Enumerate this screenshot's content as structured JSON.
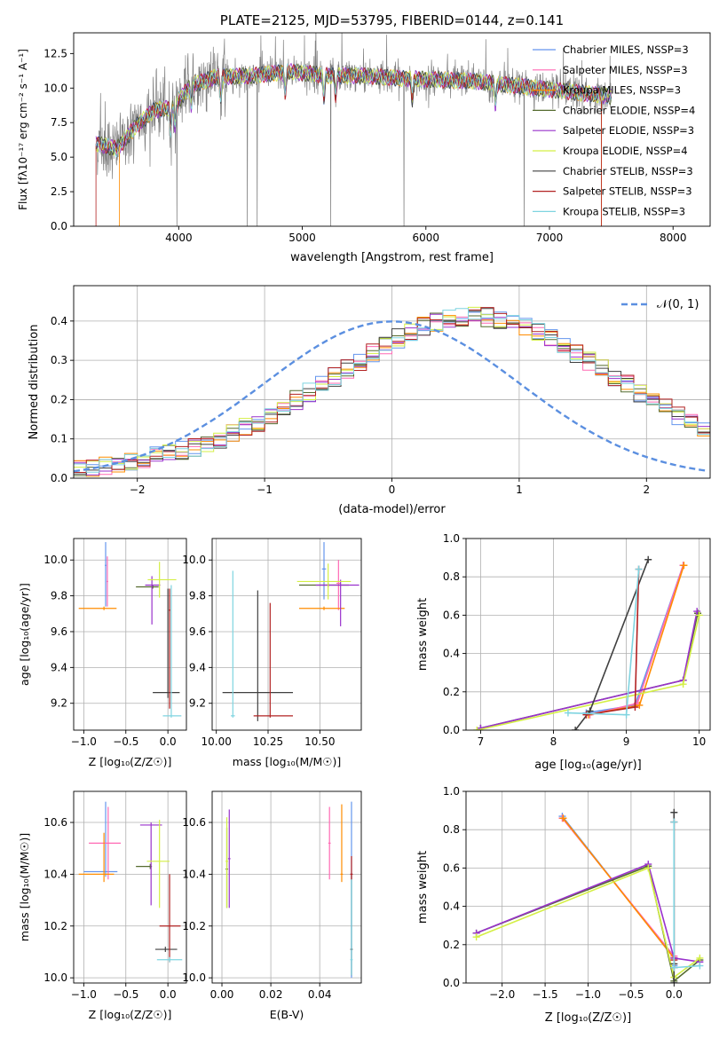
{
  "chart_data": [
    {
      "id": "spectrum",
      "type": "line",
      "title": "PLATE=2125, MJD=53795, FIBERID=0144, z=0.141",
      "xlabel": "wavelength [Angstrom, rest frame]",
      "ylabel": "Flux [fλ10⁻¹⁷ erg cm⁻² s⁻¹ A⁻¹]",
      "xlim": [
        3150,
        8300
      ],
      "ylim": [
        0,
        14
      ],
      "xticks": [
        4000,
        5000,
        6000,
        7000,
        8000
      ],
      "yticks": [
        0.0,
        2.5,
        5.0,
        7.5,
        10.0,
        12.5
      ],
      "grid": false,
      "legend": "top-right",
      "data_series": {
        "name": "data",
        "color": "#808080"
      },
      "series": [
        {
          "name": "Chabrier MILES, NSSP=3",
          "color": "#6495ed"
        },
        {
          "name": "Salpeter MILES, NSSP=3",
          "color": "#ff69b4"
        },
        {
          "name": "Kroupa MILES, NSSP=3",
          "color": "#ff8c00"
        },
        {
          "name": "Chabrier ELODIE, NSSP=4",
          "color": "#556b2f"
        },
        {
          "name": "Salpeter ELODIE, NSSP=3",
          "color": "#9932cc"
        },
        {
          "name": "Kroupa ELODIE, NSSP=4",
          "color": "#d4ef44"
        },
        {
          "name": "Chabrier STELIB, NSSP=3",
          "color": "#404040"
        },
        {
          "name": "Salpeter STELIB, NSSP=3",
          "color": "#b22222"
        },
        {
          "name": "Kroupa STELIB, NSSP=3",
          "color": "#7fd4e0"
        }
      ],
      "anchors": {
        "x": [
          3330,
          3500,
          3650,
          3800,
          3950,
          4100,
          4300,
          4600,
          4900,
          5200,
          5500,
          5800,
          6100,
          6400,
          6700,
          7000,
          7300,
          7500
        ],
        "y": [
          6.0,
          5.6,
          7.2,
          8.4,
          8.6,
          10.2,
          10.8,
          10.9,
          11.2,
          10.9,
          10.9,
          10.7,
          10.6,
          10.5,
          10.2,
          9.9,
          9.6,
          9.4
        ]
      }
    },
    {
      "id": "residuals",
      "type": "histogram",
      "xlabel": "(data-model)/error",
      "ylabel": "Normed distribution",
      "xlim": [
        -2.5,
        2.5
      ],
      "ylim": [
        0,
        0.49
      ],
      "xticks": [
        -2,
        -1,
        0,
        1,
        2
      ],
      "yticks": [
        0.0,
        0.1,
        0.2,
        0.3,
        0.4
      ],
      "grid": true,
      "legend": "top-right",
      "reference": {
        "name": "𝒩(0, 1)",
        "color": "#5b8fe0"
      },
      "bin_edges_start": -2.5,
      "bin_width": 0.1,
      "base_heights": [
        0.022,
        0.026,
        0.03,
        0.036,
        0.045,
        0.052,
        0.058,
        0.065,
        0.072,
        0.08,
        0.09,
        0.099,
        0.112,
        0.128,
        0.142,
        0.16,
        0.178,
        0.198,
        0.218,
        0.238,
        0.258,
        0.278,
        0.298,
        0.318,
        0.338,
        0.356,
        0.372,
        0.386,
        0.397,
        0.405,
        0.41,
        0.412,
        0.41,
        0.405,
        0.397,
        0.386,
        0.372,
        0.356,
        0.338,
        0.318,
        0.298,
        0.278,
        0.258,
        0.238,
        0.218,
        0.198,
        0.178,
        0.16,
        0.142,
        0.128,
        0.112
      ]
    },
    {
      "id": "age-vs-Z",
      "type": "errorbar",
      "xlabel": "Z [log₁₀(Z/Z☉)]",
      "ylabel": "age  [log₁₀(age/yr)]",
      "xlim": [
        -1.12,
        0.22
      ],
      "ylim": [
        9.05,
        10.12
      ],
      "xticks": [
        -1.0,
        -0.5,
        0.0
      ],
      "xticklabels": [
        "−1.0",
        "−0.5",
        "0.0"
      ],
      "yticks": [
        9.2,
        9.4,
        9.6,
        9.8,
        10.0
      ],
      "grid": true,
      "points": [
        {
          "x": -0.74,
          "y": 9.97,
          "xerr": [
            0.01,
            0.01
          ],
          "yerr": [
            0.23,
            0.13
          ],
          "color": "#6495ed"
        },
        {
          "x": -0.72,
          "y": 9.88,
          "xerr": [
            0.01,
            0.01
          ],
          "yerr": [
            0.14,
            0.14
          ],
          "color": "#ff69b4"
        },
        {
          "x": -0.76,
          "y": 9.73,
          "xerr": [
            0.3,
            0.15
          ],
          "yerr": [
            0.01,
            0.01
          ],
          "color": "#ff8c00"
        },
        {
          "x": -0.18,
          "y": 9.85,
          "xerr": [
            0.2,
            0.07
          ],
          "yerr": [
            0.01,
            0.01
          ],
          "color": "#556b2f"
        },
        {
          "x": -0.19,
          "y": 9.86,
          "xerr": [
            0.08,
            0.1
          ],
          "yerr": [
            0.22,
            0.05
          ],
          "color": "#9932cc"
        },
        {
          "x": -0.1,
          "y": 9.89,
          "xerr": [
            0.14,
            0.2
          ],
          "yerr": [
            0.1,
            0.1
          ],
          "color": "#d4ef44"
        },
        {
          "x": 0.0,
          "y": 9.26,
          "xerr": [
            0.18,
            0.14
          ],
          "yerr": [
            0.03,
            0.58
          ],
          "color": "#404040"
        },
        {
          "x": 0.02,
          "y": 9.72,
          "xerr": [
            0.01,
            0.01
          ],
          "yerr": [
            0.55,
            0.12
          ],
          "color": "#b22222"
        },
        {
          "x": 0.04,
          "y": 9.13,
          "xerr": [
            0.1,
            0.12
          ],
          "yerr": [
            0.01,
            0.73
          ],
          "color": "#7fd4e0"
        }
      ]
    },
    {
      "id": "age-vs-mass",
      "type": "errorbar",
      "xlabel": "mass [log₁₀(M/M☉)]",
      "ylabel": "",
      "xlim": [
        9.98,
        10.7
      ],
      "ylim": [
        9.05,
        10.12
      ],
      "xticks": [
        10.0,
        10.25,
        10.5
      ],
      "xticklabels": [
        "10.00",
        "10.25",
        "10.50"
      ],
      "yticks": [
        9.2,
        9.4,
        9.6,
        9.8,
        10.0
      ],
      "grid": true,
      "points": [
        {
          "x": 10.52,
          "y": 9.95,
          "xerr": [
            0.01,
            0.01
          ],
          "yerr": [
            0.17,
            0.15
          ],
          "color": "#6495ed"
        },
        {
          "x": 10.59,
          "y": 9.87,
          "xerr": [
            0.01,
            0.01
          ],
          "yerr": [
            0.15,
            0.13
          ],
          "color": "#ff69b4"
        },
        {
          "x": 10.52,
          "y": 9.73,
          "xerr": [
            0.12,
            0.1
          ],
          "yerr": [
            0.01,
            0.01
          ],
          "color": "#ff8c00"
        },
        {
          "x": 10.54,
          "y": 9.86,
          "xerr": [
            0.14,
            0.1
          ],
          "yerr": [
            0.01,
            0.01
          ],
          "color": "#556b2f"
        },
        {
          "x": 10.6,
          "y": 9.86,
          "xerr": [
            0.12,
            0.09
          ],
          "yerr": [
            0.23,
            0.03
          ],
          "color": "#9932cc"
        },
        {
          "x": 10.54,
          "y": 9.88,
          "xerr": [
            0.15,
            0.11
          ],
          "yerr": [
            0.1,
            0.1
          ],
          "color": "#d4ef44"
        },
        {
          "x": 10.2,
          "y": 9.26,
          "xerr": [
            0.17,
            0.17
          ],
          "yerr": [
            0.16,
            0.57
          ],
          "color": "#404040"
        },
        {
          "x": 10.26,
          "y": 9.13,
          "xerr": [
            0.08,
            0.11
          ],
          "yerr": [
            0.01,
            0.63
          ],
          "color": "#b22222"
        },
        {
          "x": 10.08,
          "y": 9.13,
          "xerr": [
            0.01,
            0.01
          ],
          "yerr": [
            0.01,
            0.81
          ],
          "color": "#7fd4e0"
        }
      ]
    },
    {
      "id": "weight-vs-age",
      "type": "line",
      "xlabel": "age  [log₁₀(age/yr)]",
      "ylabel": "mass weight",
      "xlim": [
        6.8,
        10.15
      ],
      "ylim": [
        0,
        1.0
      ],
      "xticks": [
        7,
        8,
        9,
        10
      ],
      "yticks": [
        0.0,
        0.2,
        0.4,
        0.6,
        0.8,
        1.0
      ],
      "grid": true,
      "series": [
        {
          "color": "#6495ed",
          "x": [
            8.45,
            9.12,
            9.78
          ],
          "y": [
            0.09,
            0.13,
            0.86
          ]
        },
        {
          "color": "#ff69b4",
          "x": [
            8.5,
            9.15,
            9.78
          ],
          "y": [
            0.08,
            0.14,
            0.86
          ]
        },
        {
          "color": "#ff8c00",
          "x": [
            8.48,
            9.18,
            9.79
          ],
          "y": [
            0.08,
            0.13,
            0.86
          ]
        },
        {
          "color": "#556b2f",
          "x": [
            7.0,
            9.78,
            9.98
          ],
          "y": [
            0.01,
            0.26,
            0.61
          ]
        },
        {
          "color": "#9932cc",
          "x": [
            7.0,
            9.78,
            9.97
          ],
          "y": [
            0.01,
            0.26,
            0.62
          ]
        },
        {
          "color": "#d4ef44",
          "x": [
            6.95,
            9.78,
            10.0
          ],
          "y": [
            0.0,
            0.24,
            0.6
          ]
        },
        {
          "color": "#404040",
          "x": [
            8.3,
            8.5,
            9.3
          ],
          "y": [
            0.0,
            0.1,
            0.89
          ]
        },
        {
          "color": "#b22222",
          "x": [
            8.45,
            9.12,
            9.17
          ],
          "y": [
            0.08,
            0.12,
            0.84
          ]
        },
        {
          "color": "#7fd4e0",
          "x": [
            8.2,
            9.0,
            9.17
          ],
          "y": [
            0.09,
            0.08,
            0.84
          ]
        }
      ]
    },
    {
      "id": "mass-vs-Z",
      "type": "errorbar",
      "xlabel": "Z [log₁₀(Z/Z☉)]",
      "ylabel": "mass [log₁₀(M/M☉)]",
      "xlim": [
        -1.12,
        0.22
      ],
      "ylim": [
        9.98,
        10.72
      ],
      "xticks": [
        -1.0,
        -0.5,
        0.0
      ],
      "xticklabels": [
        "−1.0",
        "−0.5",
        "0.0"
      ],
      "yticks": [
        10.0,
        10.2,
        10.4,
        10.6
      ],
      "grid": true,
      "points": [
        {
          "x": -0.74,
          "y": 10.41,
          "xerr": [
            0.26,
            0.14
          ],
          "yerr": [
            0.02,
            0.27
          ],
          "color": "#6495ed"
        },
        {
          "x": -0.71,
          "y": 10.52,
          "xerr": [
            0.23,
            0.15
          ],
          "yerr": [
            0.14,
            0.14
          ],
          "color": "#ff69b4"
        },
        {
          "x": -0.76,
          "y": 10.4,
          "xerr": [
            0.3,
            0.12
          ],
          "yerr": [
            0.03,
            0.16
          ],
          "color": "#ff8c00"
        },
        {
          "x": -0.21,
          "y": 10.43,
          "xerr": [
            0.17,
            0.02
          ],
          "yerr": [
            0.01,
            0.01
          ],
          "color": "#556b2f"
        },
        {
          "x": -0.2,
          "y": 10.59,
          "xerr": [
            0.13,
            0.13
          ],
          "yerr": [
            0.31,
            0.01
          ],
          "color": "#9932cc"
        },
        {
          "x": -0.1,
          "y": 10.45,
          "xerr": [
            0.15,
            0.12
          ],
          "yerr": [
            0.18,
            0.16
          ],
          "color": "#d4ef44"
        },
        {
          "x": -0.03,
          "y": 10.11,
          "xerr": [
            0.12,
            0.14
          ],
          "yerr": [
            0.01,
            0.01
          ],
          "color": "#404040"
        },
        {
          "x": 0.02,
          "y": 10.2,
          "xerr": [
            0.12,
            0.13
          ],
          "yerr": [
            0.14,
            0.2
          ],
          "color": "#b22222"
        },
        {
          "x": 0.02,
          "y": 10.07,
          "xerr": [
            0.15,
            0.15
          ],
          "yerr": [
            0.01,
            0.01
          ],
          "color": "#7fd4e0"
        }
      ]
    },
    {
      "id": "mass-vs-ebv",
      "type": "errorbar",
      "xlabel": "E(B-V)",
      "ylabel": "",
      "xlim": [
        -0.004,
        0.057
      ],
      "ylim": [
        9.98,
        10.72
      ],
      "xticks": [
        0.0,
        0.02,
        0.04
      ],
      "xticklabels": [
        "0.00",
        "0.02",
        "0.04"
      ],
      "yticks": [
        10.0,
        10.2,
        10.4,
        10.6
      ],
      "grid": true,
      "points": [
        {
          "x": 0.053,
          "y": 10.4,
          "xerr": [
            0.0005,
            0.0005
          ],
          "yerr": [
            0.4,
            0.28
          ],
          "color": "#6495ed"
        },
        {
          "x": 0.044,
          "y": 10.52,
          "xerr": [
            0.0005,
            0.0005
          ],
          "yerr": [
            0.14,
            0.14
          ],
          "color": "#ff69b4"
        },
        {
          "x": 0.049,
          "y": 10.4,
          "xerr": [
            0.0005,
            0.0005
          ],
          "yerr": [
            0.03,
            0.27
          ],
          "color": "#ff8c00"
        },
        {
          "x": 0.002,
          "y": 10.42,
          "xerr": [
            0.0005,
            0.0005
          ],
          "yerr": [
            0.15,
            0.16
          ],
          "color": "#556b2f"
        },
        {
          "x": 0.003,
          "y": 10.46,
          "xerr": [
            0.0005,
            0.0005
          ],
          "yerr": [
            0.19,
            0.19
          ],
          "color": "#9932cc"
        },
        {
          "x": 0.002,
          "y": 10.45,
          "xerr": [
            0.0005,
            0.0005
          ],
          "yerr": [
            0.18,
            0.17
          ],
          "color": "#d4ef44"
        },
        {
          "x": 0.053,
          "y": 10.11,
          "xerr": [
            0.0005,
            0.0005
          ],
          "yerr": [
            0.1,
            0.29
          ],
          "color": "#404040"
        },
        {
          "x": 0.053,
          "y": 10.4,
          "xerr": [
            0.0005,
            0.0005
          ],
          "yerr": [
            0.02,
            0.07
          ],
          "color": "#b22222"
        },
        {
          "x": 0.053,
          "y": 10.07,
          "xerr": [
            0.0005,
            0.0005
          ],
          "yerr": [
            0.06,
            0.31
          ],
          "color": "#7fd4e0"
        }
      ]
    },
    {
      "id": "weight-vs-Z",
      "type": "line",
      "xlabel": "Z [log₁₀(Z/Z☉)]",
      "ylabel": "mass weight",
      "xlim": [
        -2.42,
        0.42
      ],
      "ylim": [
        0,
        1.0
      ],
      "xticks": [
        -2.0,
        -1.5,
        -1.0,
        -0.5,
        0.0
      ],
      "xticklabels": [
        "−2.0",
        "−1.5",
        "−1.0",
        "−0.5",
        "0.0"
      ],
      "yticks": [
        0.0,
        0.2,
        0.4,
        0.6,
        0.8,
        1.0
      ],
      "grid": true,
      "series": [
        {
          "color": "#6495ed",
          "x": [
            -1.3,
            0.0,
            0.0
          ],
          "y": [
            0.87,
            0.13,
            0.09
          ]
        },
        {
          "color": "#ff69b4",
          "x": [
            -1.3,
            0.0,
            0.0
          ],
          "y": [
            0.86,
            0.14,
            0.08
          ]
        },
        {
          "color": "#ff8c00",
          "x": [
            -1.29,
            0.0,
            0.0
          ],
          "y": [
            0.86,
            0.13,
            0.08
          ]
        },
        {
          "color": "#556b2f",
          "x": [
            -2.3,
            -0.3,
            0.0,
            0.3
          ],
          "y": [
            0.26,
            0.61,
            0.01,
            0.12
          ]
        },
        {
          "color": "#9932cc",
          "x": [
            -2.3,
            -0.3,
            0.0,
            0.3
          ],
          "y": [
            0.26,
            0.62,
            0.13,
            0.11
          ]
        },
        {
          "color": "#d4ef44",
          "x": [
            -2.3,
            -0.3,
            0.0,
            0.3
          ],
          "y": [
            0.24,
            0.6,
            0.03,
            0.13
          ]
        },
        {
          "color": "#404040",
          "x": [
            0.0,
            0.0,
            0.0
          ],
          "y": [
            0.89,
            0.1,
            0.0
          ]
        },
        {
          "color": "#b22222",
          "x": [
            0.0,
            0.0,
            0.0
          ],
          "y": [
            0.84,
            0.12,
            0.08
          ]
        },
        {
          "color": "#7fd4e0",
          "x": [
            0.0,
            0.0,
            0.3
          ],
          "y": [
            0.84,
            0.08,
            0.09
          ]
        }
      ]
    }
  ]
}
